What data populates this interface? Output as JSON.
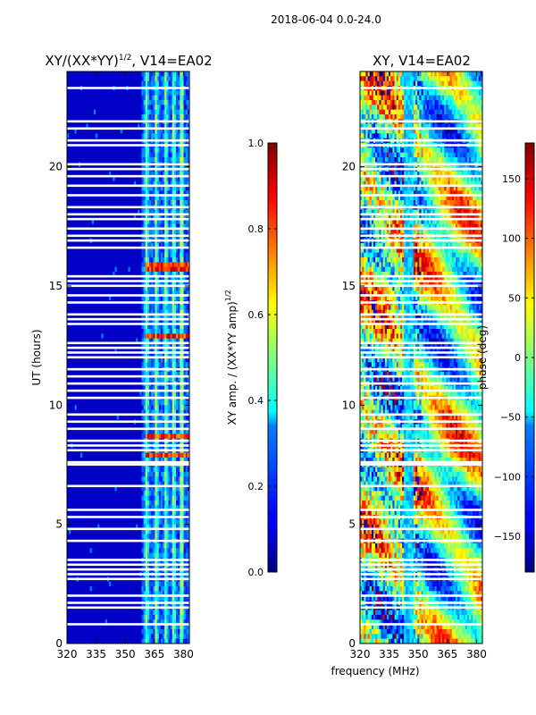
{
  "suptitle": "2018-06-04 0.0-24.0",
  "chart_data": [
    {
      "type": "heatmap",
      "title_main": "XY/(XX*YY)",
      "title_sup": "1/2",
      "title_rest": ", V14=EA02",
      "ylabel": "UT (hours)",
      "xlabel": "",
      "xlim": [
        320,
        383
      ],
      "ylim": [
        0,
        24
      ],
      "xticks": [
        "320",
        "335",
        "350",
        "365",
        "380"
      ],
      "xtick_values": [
        320,
        335,
        350,
        365,
        380
      ],
      "yticks": [
        "0",
        "5",
        "10",
        "15",
        "20"
      ],
      "ytick_values": [
        0,
        5,
        10,
        15,
        20
      ],
      "colorbar": {
        "label_main": "XY amp. / (XX*YY amp)",
        "label_sup": "1/2",
        "range": [
          0.0,
          1.0
        ],
        "ticks": [
          "0.0",
          "0.2",
          "0.4",
          "0.6",
          "0.8",
          "1.0"
        ],
        "tick_values": [
          0.0,
          0.2,
          0.4,
          0.6,
          0.8,
          1.0
        ]
      },
      "high_value_bands_hours": [
        [
          7.8,
          8.0
        ],
        [
          8.6,
          8.8
        ],
        [
          12.8,
          13.0
        ],
        [
          15.6,
          15.9
        ]
      ],
      "bright_channel_mhz": [
        361,
        366,
        371,
        375,
        379
      ]
    },
    {
      "type": "heatmap",
      "title_main": "XY, V14=EA02",
      "ylabel": "",
      "xlabel": "frequency (MHz)",
      "xlim": [
        320,
        383
      ],
      "ylim": [
        0,
        24
      ],
      "xticks": [
        "320",
        "335",
        "350",
        "365",
        "380"
      ],
      "xtick_values": [
        320,
        335,
        350,
        365,
        380
      ],
      "yticks": [
        "0",
        "5",
        "10",
        "15",
        "20"
      ],
      "ytick_values": [
        0,
        5,
        10,
        15,
        20
      ],
      "colorbar": {
        "label": "phase (deg)",
        "range": [
          -180,
          180
        ],
        "ticks": [
          "150",
          "100",
          "50",
          "0",
          "−50",
          "−100",
          "−150"
        ],
        "tick_values": [
          150,
          100,
          50,
          0,
          -50,
          -100,
          -150
        ]
      }
    }
  ],
  "flagged_rows_hours": [
    0.8,
    1.5,
    1.7,
    2.0,
    2.7,
    2.9,
    3.1,
    3.3,
    3.5,
    4.3,
    4.8,
    5.3,
    5.6,
    6.6,
    7.5,
    7.6,
    8.1,
    8.3,
    8.5,
    9.0,
    9.3,
    9.6,
    10.3,
    10.6,
    10.9,
    11.2,
    11.5,
    12.0,
    12.2,
    12.4,
    12.6,
    13.4,
    13.6,
    13.8,
    14.3,
    14.6,
    15.0,
    15.2,
    15.4,
    16.6,
    16.9,
    17.1,
    17.4,
    17.8,
    18.0,
    18.3,
    18.8,
    19.2,
    19.6,
    19.9,
    20.1,
    20.9,
    21.1,
    21.6,
    21.9,
    23.3
  ]
}
